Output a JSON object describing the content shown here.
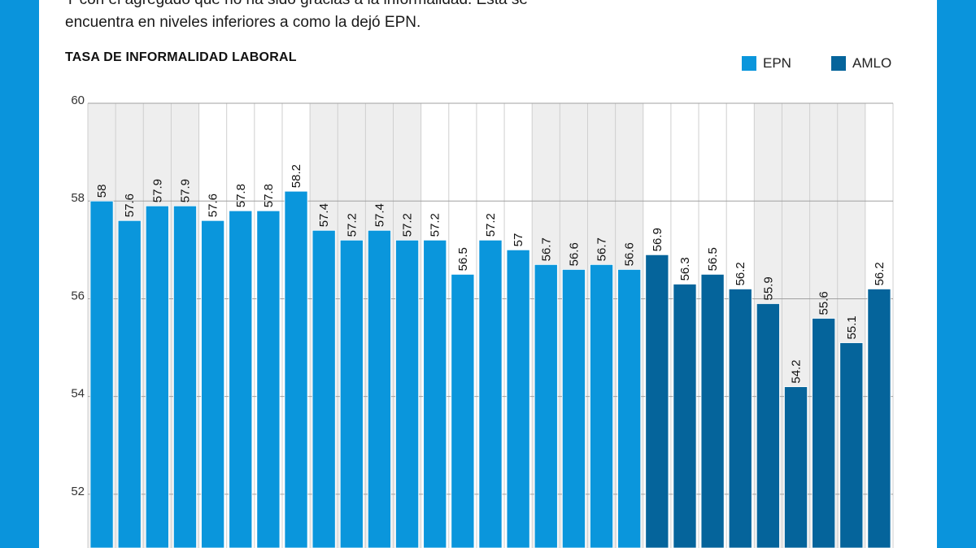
{
  "intro": {
    "line1": "Y con el agregado que no ha sido gracias a la informalidad. Esta se",
    "line2": "encuentra en niveles inferiores a como la dejó EPN."
  },
  "colors": {
    "background": "#0a94dc",
    "epn": "#0a96dc",
    "amlo": "#05649b",
    "band": "#eeeeee",
    "grid": "#a0a0a0"
  },
  "chart_data": {
    "type": "bar",
    "title": "TASA DE INFORMALIDAD LABORAL",
    "xlabel": "",
    "ylabel": "",
    "ylim": [
      50.9,
      60
    ],
    "yticks": [
      60,
      58,
      56,
      54,
      52
    ],
    "grid": true,
    "legend_position": "top-right",
    "legend": [
      {
        "name": "EPN",
        "color": "#0a96dc"
      },
      {
        "name": "AMLO",
        "color": "#05649b"
      }
    ],
    "values": [
      58,
      57.6,
      57.9,
      57.9,
      57.6,
      57.8,
      57.8,
      58.2,
      57.4,
      57.2,
      57.4,
      57.2,
      57.2,
      56.5,
      57.2,
      57,
      56.7,
      56.6,
      56.7,
      56.6,
      56.9,
      56.3,
      56.5,
      56.2,
      55.9,
      54.2,
      55.6,
      55.1,
      56.2
    ],
    "series_index": [
      "EPN",
      "EPN",
      "EPN",
      "EPN",
      "EPN",
      "EPN",
      "EPN",
      "EPN",
      "EPN",
      "EPN",
      "EPN",
      "EPN",
      "EPN",
      "EPN",
      "EPN",
      "EPN",
      "EPN",
      "EPN",
      "EPN",
      "EPN",
      "AMLO",
      "AMLO",
      "AMLO",
      "AMLO",
      "AMLO",
      "AMLO",
      "AMLO",
      "AMLO",
      "AMLO"
    ],
    "labels": [
      "58",
      "57.6",
      "57.9",
      "57.9",
      "57.6",
      "57.8",
      "57.8",
      "58.2",
      "57.4",
      "57.2",
      "57.4",
      "57.2",
      "57.2",
      "56.5",
      "57.2",
      "57",
      "56.7",
      "56.6",
      "56.7",
      "56.6",
      "56.9",
      "56.3",
      "56.5",
      "56.2",
      "55.9",
      "54.2",
      "55.6",
      "55.1",
      "56.2"
    ],
    "shaded_columns": [
      0,
      1,
      2,
      3,
      8,
      9,
      10,
      11,
      16,
      17,
      18,
      19,
      24,
      25,
      26,
      27
    ]
  }
}
